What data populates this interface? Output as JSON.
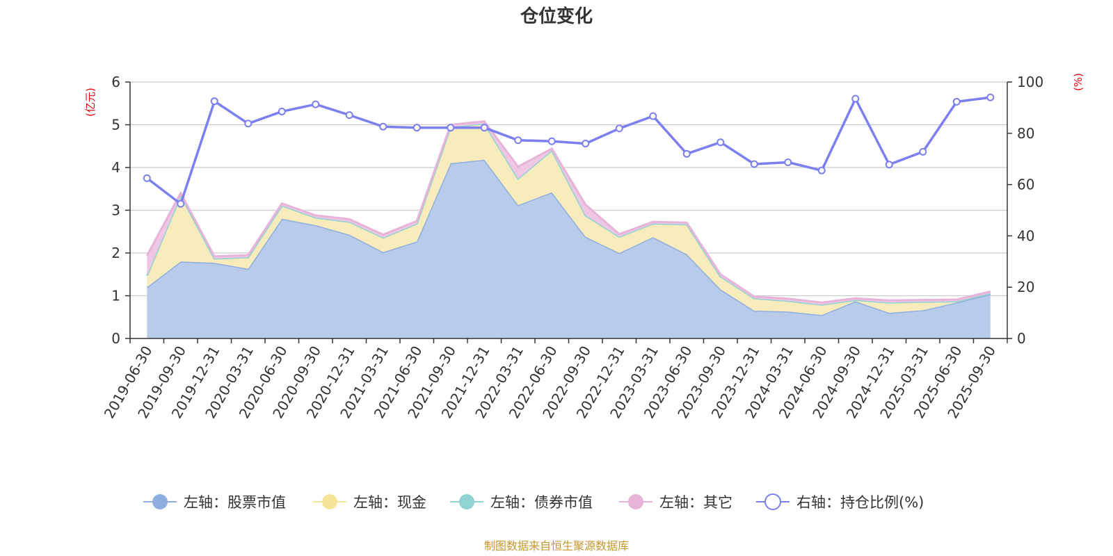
{
  "chart_data": {
    "type": "area",
    "title": "仓位变化",
    "left_unit": "(亿元)",
    "right_unit": "(%)",
    "source": "制图数据来自恒生聚源数据库",
    "categories": [
      "2019-06-30",
      "2019-09-30",
      "2019-12-31",
      "2020-03-31",
      "2020-06-30",
      "2020-09-30",
      "2020-12-31",
      "2021-03-31",
      "2021-06-30",
      "2021-09-30",
      "2021-12-31",
      "2022-03-31",
      "2022-06-30",
      "2022-09-30",
      "2022-12-31",
      "2023-03-31",
      "2023-06-30",
      "2023-09-30",
      "2023-12-31",
      "2024-03-31",
      "2024-06-30",
      "2024-09-30",
      "2024-12-31",
      "2025-03-31",
      "2025-06-30",
      "2025-09-30"
    ],
    "left_axis": {
      "min": 0,
      "max": 6,
      "ticks": [
        0,
        1,
        2,
        3,
        4,
        5,
        6
      ]
    },
    "right_axis": {
      "min": 0,
      "max": 100,
      "ticks": [
        0,
        20,
        40,
        60,
        80,
        100
      ]
    },
    "series": [
      {
        "name": "左轴：股票市值",
        "axis": "left",
        "kind": "stacked-area",
        "color": "#8eaedf",
        "fill": "#b8cbea",
        "values": [
          1.2,
          1.8,
          1.77,
          1.63,
          2.8,
          2.65,
          2.43,
          2.02,
          2.27,
          4.1,
          4.18,
          3.12,
          3.42,
          2.38,
          2.0,
          2.37,
          1.97,
          1.15,
          0.65,
          0.63,
          0.55,
          0.87,
          0.6,
          0.66,
          0.84,
          1.04
        ]
      },
      {
        "name": "左轴：现金",
        "axis": "left",
        "kind": "stacked-area",
        "color": "#f5e49a",
        "fill": "#f8ecbd",
        "values": [
          0.27,
          1.55,
          0.1,
          0.27,
          0.31,
          0.18,
          0.3,
          0.34,
          0.42,
          0.85,
          0.85,
          0.62,
          0.98,
          0.5,
          0.38,
          0.32,
          0.7,
          0.3,
          0.29,
          0.25,
          0.24,
          0.03,
          0.24,
          0.2,
          0.03,
          0.02
        ]
      },
      {
        "name": "左轴：债券市值",
        "axis": "left",
        "kind": "stacked-area",
        "color": "#8fd3d3",
        "fill": "#b5e3e3",
        "values": [
          0,
          0,
          0,
          0,
          0,
          0,
          0,
          0,
          0,
          0,
          0,
          0,
          0,
          0,
          0,
          0,
          0,
          0,
          0,
          0,
          0,
          0,
          0,
          0,
          0,
          0
        ]
      },
      {
        "name": "左轴：其它",
        "axis": "left",
        "kind": "stacked-area",
        "color": "#e7b3d9",
        "fill": "#eec7e3",
        "values": [
          0.47,
          0.05,
          0.05,
          0.05,
          0.05,
          0.05,
          0.06,
          0.07,
          0.06,
          0.05,
          0.05,
          0.28,
          0.04,
          0.25,
          0.06,
          0.04,
          0.04,
          0.05,
          0.04,
          0.05,
          0.05,
          0.04,
          0.05,
          0.04,
          0.04,
          0.04
        ]
      },
      {
        "name": "右轴：持仓比例(%)",
        "axis": "right",
        "kind": "line",
        "color": "#7b7ff0",
        "values": [
          62.5,
          52.5,
          92.5,
          83.8,
          88.5,
          91.3,
          87.1,
          82.6,
          82.2,
          82.2,
          82.2,
          77.3,
          76.9,
          76.0,
          81.9,
          86.7,
          72.0,
          76.5,
          68.0,
          68.7,
          65.5,
          93.5,
          67.8,
          72.8,
          92.3,
          94.0
        ]
      }
    ]
  }
}
